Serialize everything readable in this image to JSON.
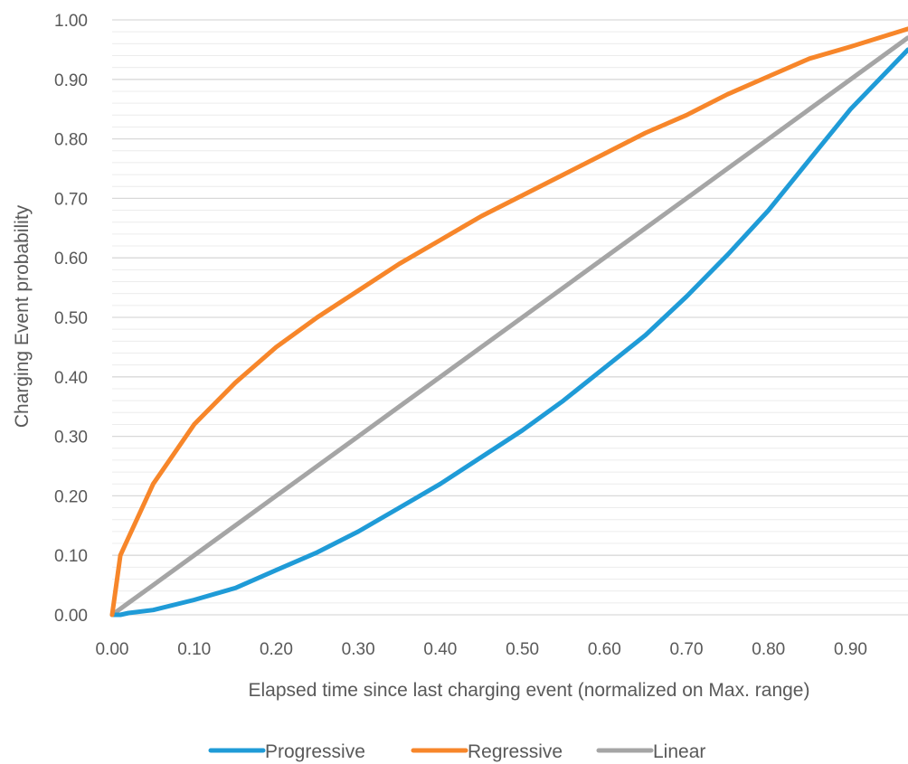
{
  "chart_data": {
    "type": "line",
    "title": "",
    "xlabel": "Elapsed time since last charging event (normalized on Max. range)",
    "ylabel": "Charging Event probability",
    "xlim": [
      0,
      0.97
    ],
    "ylim": [
      0,
      1.0
    ],
    "x_ticks": [
      "0.00",
      "0.10",
      "0.20",
      "0.30",
      "0.40",
      "0.50",
      "0.60",
      "0.70",
      "0.80",
      "0.90"
    ],
    "y_ticks": [
      "0.00",
      "0.10",
      "0.20",
      "0.30",
      "0.40",
      "0.50",
      "0.60",
      "0.70",
      "0.80",
      "0.90",
      "1.00"
    ],
    "grid": true,
    "minor_grid": true,
    "legend_position": "bottom",
    "x": [
      0,
      0.01,
      0.02,
      0.05,
      0.1,
      0.15,
      0.2,
      0.25,
      0.3,
      0.35,
      0.4,
      0.45,
      0.5,
      0.55,
      0.6,
      0.65,
      0.7,
      0.75,
      0.8,
      0.85,
      0.9,
      0.97
    ],
    "series": [
      {
        "name": "Progressive",
        "color": "#1f9bd7",
        "values": [
          0,
          0.0,
          0.003,
          0.008,
          0.025,
          0.045,
          0.075,
          0.105,
          0.14,
          0.18,
          0.22,
          0.265,
          0.31,
          0.36,
          0.415,
          0.47,
          0.535,
          0.605,
          0.68,
          0.765,
          0.85,
          0.95
        ]
      },
      {
        "name": "Regressive",
        "color": "#f7862a",
        "values": [
          0,
          0.1,
          0.13,
          0.22,
          0.32,
          0.39,
          0.45,
          0.5,
          0.545,
          0.59,
          0.63,
          0.67,
          0.705,
          0.74,
          0.775,
          0.81,
          0.84,
          0.875,
          0.905,
          0.935,
          0.955,
          0.985
        ]
      },
      {
        "name": "Linear",
        "color": "#a5a5a5",
        "values": [
          0,
          0.01,
          0.02,
          0.05,
          0.1,
          0.15,
          0.2,
          0.25,
          0.3,
          0.35,
          0.4,
          0.45,
          0.5,
          0.55,
          0.6,
          0.65,
          0.7,
          0.75,
          0.8,
          0.85,
          0.9,
          0.97
        ]
      }
    ]
  }
}
